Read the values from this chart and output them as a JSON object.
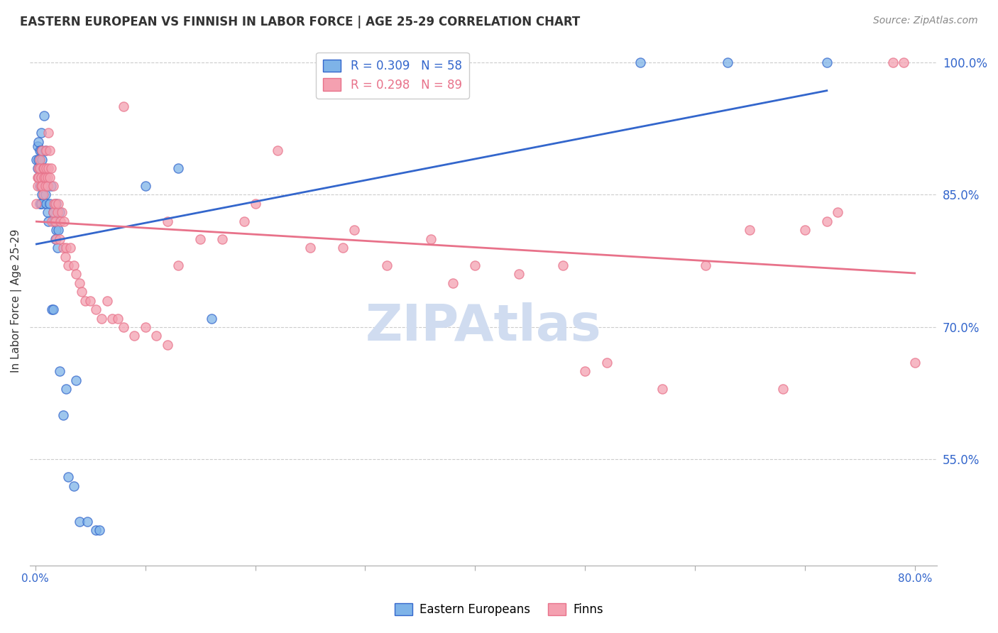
{
  "title": "EASTERN EUROPEAN VS FINNISH IN LABOR FORCE | AGE 25-29 CORRELATION CHART",
  "source": "Source: ZipAtlas.com",
  "xlabel": "",
  "ylabel": "In Labor Force | Age 25-29",
  "x_ticks": [
    0.0,
    0.1,
    0.2,
    0.3,
    0.4,
    0.5,
    0.6,
    0.7,
    0.8
  ],
  "x_tick_labels": [
    "0.0%",
    "",
    "",
    "",
    "",
    "",
    "",
    "",
    "80.0%"
  ],
  "y_ticks": [
    0.55,
    0.7,
    0.85,
    1.0
  ],
  "y_tick_labels": [
    "55.0%",
    "70.0%",
    "85.0%",
    "100.0%"
  ],
  "xlim": [
    -0.005,
    0.82
  ],
  "ylim": [
    0.43,
    1.03
  ],
  "blue_R": 0.309,
  "blue_N": 58,
  "pink_R": 0.298,
  "pink_N": 89,
  "blue_color": "#7EB3E8",
  "pink_color": "#F4A0B0",
  "blue_line_color": "#3366CC",
  "pink_line_color": "#E8728A",
  "axis_color": "#3366CC",
  "grid_color": "#CCCCCC",
  "title_color": "#333333",
  "source_color": "#888888",
  "watermark_color": "#D0DCF0",
  "legend_blue_text": "R = 0.309   N = 58",
  "legend_pink_text": "R = 0.298   N = 89",
  "legend_label_eastern": "Eastern Europeans",
  "legend_label_finns": "Finns",
  "blue_x": [
    0.001,
    0.002,
    0.002,
    0.003,
    0.003,
    0.003,
    0.004,
    0.004,
    0.004,
    0.004,
    0.005,
    0.005,
    0.005,
    0.005,
    0.005,
    0.006,
    0.006,
    0.006,
    0.007,
    0.007,
    0.008,
    0.008,
    0.008,
    0.009,
    0.009,
    0.009,
    0.01,
    0.01,
    0.011,
    0.012,
    0.013,
    0.014,
    0.015,
    0.016,
    0.016,
    0.017,
    0.018,
    0.019,
    0.019,
    0.02,
    0.021,
    0.022,
    0.022,
    0.025,
    0.028,
    0.03,
    0.035,
    0.037,
    0.04,
    0.047,
    0.055,
    0.058,
    0.1,
    0.13,
    0.16,
    0.55,
    0.63,
    0.72
  ],
  "blue_y": [
    0.89,
    0.88,
    0.905,
    0.87,
    0.89,
    0.91,
    0.84,
    0.86,
    0.88,
    0.9,
    0.84,
    0.87,
    0.9,
    0.92,
    0.84,
    0.85,
    0.87,
    0.89,
    0.86,
    0.88,
    0.94,
    0.88,
    0.86,
    0.9,
    0.87,
    0.85,
    0.86,
    0.84,
    0.83,
    0.82,
    0.84,
    0.86,
    0.72,
    0.72,
    0.83,
    0.82,
    0.8,
    0.84,
    0.81,
    0.79,
    0.81,
    0.65,
    0.83,
    0.6,
    0.63,
    0.53,
    0.52,
    0.64,
    0.48,
    0.48,
    0.47,
    0.47,
    0.86,
    0.88,
    0.71,
    1.0,
    1.0,
    1.0
  ],
  "pink_x": [
    0.001,
    0.002,
    0.002,
    0.003,
    0.003,
    0.004,
    0.004,
    0.005,
    0.005,
    0.006,
    0.006,
    0.007,
    0.007,
    0.008,
    0.008,
    0.009,
    0.009,
    0.01,
    0.01,
    0.011,
    0.011,
    0.012,
    0.012,
    0.013,
    0.013,
    0.014,
    0.015,
    0.016,
    0.016,
    0.017,
    0.018,
    0.018,
    0.019,
    0.02,
    0.021,
    0.022,
    0.023,
    0.024,
    0.025,
    0.026,
    0.027,
    0.028,
    0.03,
    0.032,
    0.035,
    0.037,
    0.04,
    0.042,
    0.045,
    0.05,
    0.055,
    0.06,
    0.065,
    0.07,
    0.075,
    0.08,
    0.09,
    0.1,
    0.11,
    0.12,
    0.13,
    0.15,
    0.17,
    0.19,
    0.22,
    0.25,
    0.28,
    0.32,
    0.36,
    0.4,
    0.44,
    0.48,
    0.52,
    0.57,
    0.61,
    0.65,
    0.7,
    0.72,
    0.73,
    0.78,
    0.79,
    0.8,
    0.68,
    0.5,
    0.38,
    0.29,
    0.2,
    0.12,
    0.08
  ],
  "pink_y": [
    0.84,
    0.87,
    0.86,
    0.88,
    0.87,
    0.89,
    0.88,
    0.87,
    0.86,
    0.86,
    0.9,
    0.88,
    0.85,
    0.87,
    0.88,
    0.86,
    0.87,
    0.9,
    0.88,
    0.87,
    0.86,
    0.92,
    0.88,
    0.87,
    0.9,
    0.88,
    0.82,
    0.83,
    0.86,
    0.84,
    0.84,
    0.82,
    0.8,
    0.83,
    0.84,
    0.8,
    0.82,
    0.83,
    0.79,
    0.82,
    0.78,
    0.79,
    0.77,
    0.79,
    0.77,
    0.76,
    0.75,
    0.74,
    0.73,
    0.73,
    0.72,
    0.71,
    0.73,
    0.71,
    0.71,
    0.7,
    0.69,
    0.7,
    0.69,
    0.68,
    0.77,
    0.8,
    0.8,
    0.82,
    0.9,
    0.79,
    0.79,
    0.77,
    0.8,
    0.77,
    0.76,
    0.77,
    0.66,
    0.63,
    0.77,
    0.81,
    0.81,
    0.82,
    0.83,
    1.0,
    1.0,
    0.66,
    0.63,
    0.65,
    0.75,
    0.81,
    0.84,
    0.82,
    0.95
  ]
}
